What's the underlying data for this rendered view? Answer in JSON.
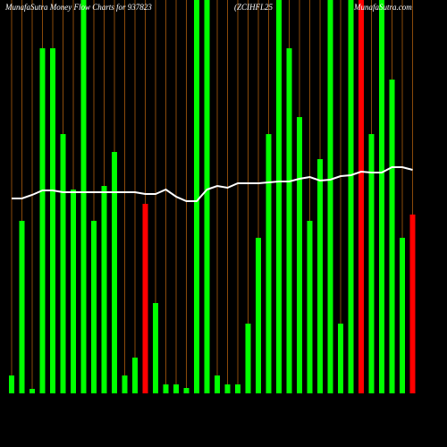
{
  "chart_data": {
    "type": "bar",
    "title": "MunafaSutra  Money Flow  Charts for 937823",
    "subtitle": "(ZCIHFL25",
    "source": "MunafaSutra.com",
    "ylim": [
      0,
      440
    ],
    "grid": true,
    "grid_color": "#8a4a0a",
    "series": [
      {
        "type": "bar",
        "values": [
          20,
          193,
          5,
          386,
          386,
          290,
          228,
          440,
          193,
          232,
          270,
          20,
          40,
          212,
          101,
          10,
          10,
          6,
          440,
          440,
          20,
          10,
          10,
          78,
          174,
          290,
          440,
          386,
          309,
          193,
          262,
          440,
          78,
          440,
          440,
          290,
          440,
          351,
          174,
          200
        ],
        "colors": [
          "#00ff00",
          "#00ff00",
          "#00ff00",
          "#00ff00",
          "#00ff00",
          "#00ff00",
          "#00ff00",
          "#00ff00",
          "#00ff00",
          "#00ff00",
          "#00ff00",
          "#00ff00",
          "#00ff00",
          "#ff0000",
          "#00ff00",
          "#00ff00",
          "#00ff00",
          "#00ff00",
          "#00ff00",
          "#00ff00",
          "#00ff00",
          "#00ff00",
          "#00ff00",
          "#00ff00",
          "#00ff00",
          "#00ff00",
          "#00ff00",
          "#00ff00",
          "#00ff00",
          "#00ff00",
          "#00ff00",
          "#00ff00",
          "#00ff00",
          "#00ff00",
          "#ff0000",
          "#00ff00",
          "#00ff00",
          "#00ff00",
          "#00ff00",
          "#ff0000"
        ]
      },
      {
        "type": "line",
        "color": "#ffffff",
        "values": [
          218,
          218,
          222,
          227,
          227,
          225,
          225,
          225,
          225,
          225,
          225,
          225,
          225,
          223,
          223,
          228,
          220,
          215,
          215,
          228,
          232,
          230,
          235,
          235,
          235,
          236,
          237,
          237,
          240,
          242,
          238,
          239,
          243,
          244,
          248,
          247,
          247,
          253,
          253,
          250
        ]
      }
    ]
  }
}
